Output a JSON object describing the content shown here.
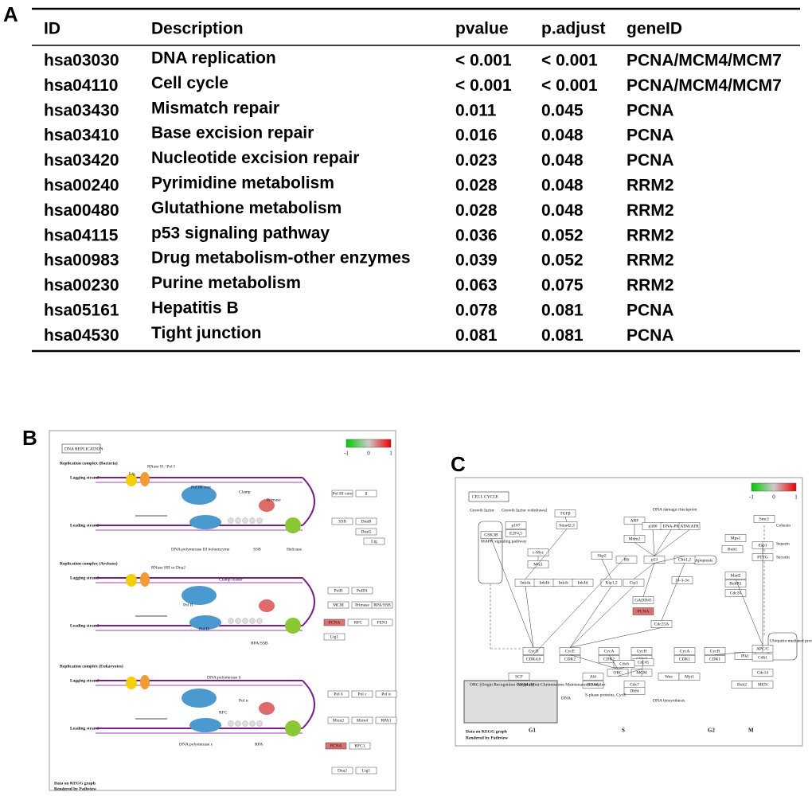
{
  "panel_a": {
    "label": "A",
    "headers": [
      "ID",
      "Description",
      "pvalue",
      "p.adjust",
      "geneID"
    ],
    "rows": [
      [
        "hsa03030",
        "DNA replication",
        "< 0.001",
        "< 0.001",
        "PCNA/MCM4/MCM7"
      ],
      [
        "hsa04110",
        "Cell cycle",
        "< 0.001",
        "< 0.001",
        "PCNA/MCM4/MCM7"
      ],
      [
        "hsa03430",
        "Mismatch repair",
        "0.011",
        "0.045",
        "PCNA"
      ],
      [
        "hsa03410",
        "Base excision repair",
        "0.016",
        "0.048",
        "PCNA"
      ],
      [
        "hsa03420",
        "Nucleotide excision repair",
        "0.023",
        "0.048",
        "PCNA"
      ],
      [
        "hsa00240",
        "Pyrimidine metabolism",
        "0.028",
        "0.048",
        "RRM2"
      ],
      [
        "hsa00480",
        "Glutathione metabolism",
        "0.028",
        "0.048",
        "RRM2"
      ],
      [
        "hsa04115",
        "p53 signaling pathway",
        "0.036",
        "0.052",
        "RRM2"
      ],
      [
        "hsa00983",
        "Drug metabolism-other enzymes",
        "0.039",
        "0.052",
        "RRM2"
      ],
      [
        "hsa00230",
        "Purine metabolism",
        "0.063",
        "0.075",
        "RRM2"
      ],
      [
        "hsa05161",
        "Hepatitis B",
        "0.078",
        "0.081",
        "PCNA"
      ],
      [
        "hsa04530",
        "Tight junction",
        "0.081",
        "0.081",
        "PCNA"
      ]
    ]
  },
  "panel_b": {
    "label": "B",
    "title": "DNA REPLICATION",
    "legend": [
      "-1",
      "0",
      "1"
    ],
    "sections": [
      "Replication complex (Bacteria)",
      "Replication complex (Archaea)",
      "Replication complex (Eukaryotes)"
    ],
    "strands": [
      "Lagging strand",
      "Leading strand"
    ],
    "labels": [
      "Lig",
      "RNase H / Pol I",
      "Pol III core",
      "Clamp",
      "Primase",
      "Helicase",
      "SSB",
      "DNA polymerase III holoenzyme",
      "RNase HII or Dna2",
      "Pol B",
      "Clamp loader",
      "Pol D",
      "RPA/SSB",
      "DNA polymerase δ",
      "Pol α",
      "RFC",
      "DNA polymerase ε",
      "RPA"
    ],
    "boxes": [
      {
        "label": "Pol III core"
      },
      {
        "label": "β"
      },
      {
        "label": "SSB"
      },
      {
        "label": "DnaB"
      },
      {
        "label": "DnaG"
      },
      {
        "label": "Lig"
      },
      {
        "label": "PolB"
      },
      {
        "label": "PolD1"
      },
      {
        "label": "MCM"
      },
      {
        "label": "Primase"
      },
      {
        "label": "RPA/SSB"
      },
      {
        "label": "PCNA",
        "color": "#e07070"
      },
      {
        "label": "RFC"
      },
      {
        "label": "FEN1"
      },
      {
        "label": "Lig1"
      },
      {
        "label": "Pol δ"
      },
      {
        "label": "Pol ε"
      },
      {
        "label": "Pol α"
      },
      {
        "label": "Mcm2"
      },
      {
        "label": "Mcm4"
      },
      {
        "label": "RPA1"
      },
      {
        "label": "PCNA",
        "color": "#e07070"
      },
      {
        "label": "RFC1"
      },
      {
        "label": "Dna2"
      },
      {
        "label": "Lig1"
      }
    ],
    "footer": [
      "Data on KEGG graph",
      "Rendered by Pathview"
    ]
  },
  "panel_c": {
    "label": "C",
    "title": "CELL CYCLE",
    "legend": [
      "-1",
      "0",
      "1"
    ],
    "nodes": [
      {
        "label": "GSK3B"
      },
      {
        "label": "p107"
      },
      {
        "label": "E2F4,5"
      },
      {
        "label": "TGFβ"
      },
      {
        "label": "Smad2,3"
      },
      {
        "label": "c-Myc"
      },
      {
        "label": "Miz1"
      },
      {
        "label": "Skp2"
      },
      {
        "label": "ARF"
      },
      {
        "label": "Mdm2"
      },
      {
        "label": "p300"
      },
      {
        "label": "DNA-PK"
      },
      {
        "label": "ATM/ATR"
      },
      {
        "label": "p53"
      },
      {
        "label": "Rb"
      },
      {
        "label": "Ink4a"
      },
      {
        "label": "Ink4b"
      },
      {
        "label": "Ink4c"
      },
      {
        "label": "Ink4d"
      },
      {
        "label": "Kip1,2"
      },
      {
        "label": "Cip1"
      },
      {
        "label": "GADD45"
      },
      {
        "label": "PCNA",
        "color": "#e07070"
      },
      {
        "label": "14-3-3σ"
      },
      {
        "label": "Chk1,2"
      },
      {
        "label": "Cdc25A"
      },
      {
        "label": "CycD"
      },
      {
        "label": "CDK4,6"
      },
      {
        "label": "CycE"
      },
      {
        "label": "CDK2"
      },
      {
        "label": "CycA"
      },
      {
        "label": "CDK2"
      },
      {
        "label": "CycH"
      },
      {
        "label": "CDK7"
      },
      {
        "label": "CycA"
      },
      {
        "label": "CDK1"
      },
      {
        "label": "CycB"
      },
      {
        "label": "CDK1"
      },
      {
        "label": "Plk1"
      },
      {
        "label": "Abl"
      },
      {
        "label": "HDAC"
      },
      {
        "label": "ORC"
      },
      {
        "label": "MCM"
      },
      {
        "label": "Cdc45"
      },
      {
        "label": "Cdc6"
      },
      {
        "label": "Cdc7"
      },
      {
        "label": "Dbf4"
      },
      {
        "label": "Bub1"
      },
      {
        "label": "Mad2"
      },
      {
        "label": "BubR1"
      },
      {
        "label": "Cdc20"
      },
      {
        "label": "APC/C"
      },
      {
        "label": "Esp1"
      },
      {
        "label": "PTTG"
      },
      {
        "label": "Smc1"
      },
      {
        "label": "Bub2"
      },
      {
        "label": "MEN"
      },
      {
        "label": "Cdc14"
      },
      {
        "label": "Mps1"
      },
      {
        "label": "Wee"
      },
      {
        "label": "Myt1"
      },
      {
        "label": "SCF"
      },
      {
        "label": "Cdh1"
      }
    ],
    "texts": [
      "Growth factor",
      "Growth factor withdrawal",
      "MAPK signaling pathway",
      "DNA damage checkpoint",
      "Apoptosis",
      "Ubiquitin mediated proteolysis",
      "Cohesin",
      "Separin",
      "Securin",
      "DNA",
      "DNA biosynthesis",
      "S-phase proteins, CycE",
      "ORC (Origin Recognition Complex)",
      "MCM (Mini-Chromosome Maintenance) complex"
    ],
    "phases": [
      "G1",
      "S",
      "G2",
      "M"
    ],
    "footer": [
      "Data on KEGG graph",
      "Rendered by Pathview"
    ]
  }
}
